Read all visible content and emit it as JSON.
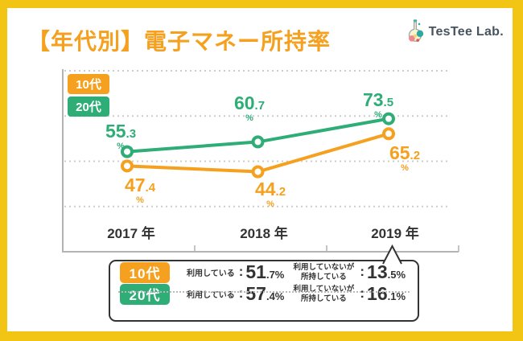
{
  "colors": {
    "frame": "#F2C514",
    "orange": "#F5A01E",
    "green": "#2EAD76",
    "dark_text": "#333333",
    "axis_gray": "#B3B3B3",
    "gridline_gray": "#CCCCCC",
    "logo_text_color": "#47535E"
  },
  "header": {
    "title": "【年代別】電子マネー所持率",
    "logo_text": "TesTee Lab."
  },
  "legend": [
    {
      "label": "10代",
      "color": "#F5A01E"
    },
    {
      "label": "20代",
      "color": "#2EAD76"
    }
  ],
  "chart_data": {
    "type": "line",
    "title": "【年代別】電子マネー所持率",
    "categories": [
      "2017 年",
      "2018 年",
      "2019 年"
    ],
    "unit": "%",
    "ylim": [
      0,
      100
    ],
    "grid": "horizontal-dotted-every-25",
    "legend_position": "top-left",
    "marker": "open-circle",
    "series": [
      {
        "name": "10代",
        "color": "#F5A01E",
        "values": [
          47.4,
          44.2,
          65.2
        ]
      },
      {
        "name": "20代",
        "color": "#2EAD76",
        "values": [
          55.3,
          60.7,
          73.5
        ]
      }
    ]
  },
  "callout": {
    "points_to": "2019 年",
    "rows": [
      {
        "label": "10代",
        "color": "#F5A01E",
        "stat1_label": "利用している",
        "stat1_value": 51.7,
        "stat2_label": "利用していないが\n所持している",
        "stat2_value": 13.5
      },
      {
        "label": "20代",
        "color": "#2EAD76",
        "stat1_label": "利用している",
        "stat1_value": 57.4,
        "stat2_label": "利用していないが\n所持している",
        "stat2_value": 16.1
      }
    ]
  }
}
